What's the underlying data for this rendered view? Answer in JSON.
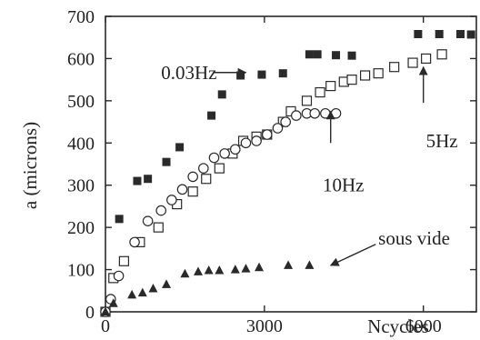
{
  "chart_data": {
    "type": "scatter",
    "title": "",
    "xlabel": "Ncycles",
    "ylabel": "a (microns)",
    "xlim": [
      0,
      7000
    ],
    "ylim": [
      0,
      700
    ],
    "x_ticks": [
      0,
      3000,
      6000
    ],
    "x_tick_labels": [
      "0",
      "3000",
      "6000"
    ],
    "y_ticks": [
      0,
      100,
      200,
      300,
      400,
      500,
      600,
      700
    ],
    "y_tick_labels": [
      "0",
      "100",
      "200",
      "300",
      "400",
      "500",
      "600",
      "700"
    ],
    "grid": false,
    "series": [
      {
        "name": "0.03Hz",
        "marker": "filled-square",
        "color": "#2a2a2a",
        "points": [
          [
            0,
            0
          ],
          [
            260,
            220
          ],
          [
            600,
            310
          ],
          [
            800,
            315
          ],
          [
            1150,
            355
          ],
          [
            1400,
            390
          ],
          [
            2000,
            465
          ],
          [
            2200,
            515
          ],
          [
            2550,
            560
          ],
          [
            2950,
            562
          ],
          [
            3350,
            565
          ],
          [
            3850,
            610
          ],
          [
            4000,
            610
          ],
          [
            4350,
            608
          ],
          [
            4650,
            607
          ],
          [
            5900,
            658
          ],
          [
            6300,
            658
          ],
          [
            6700,
            658
          ],
          [
            6900,
            657
          ]
        ]
      },
      {
        "name": "5Hz",
        "marker": "open-square",
        "color": "#2a2a2a",
        "points": [
          [
            0,
            0
          ],
          [
            150,
            80
          ],
          [
            350,
            120
          ],
          [
            650,
            165
          ],
          [
            1000,
            200
          ],
          [
            1350,
            255
          ],
          [
            1650,
            285
          ],
          [
            1900,
            315
          ],
          [
            2150,
            340
          ],
          [
            2400,
            375
          ],
          [
            2600,
            405
          ],
          [
            2850,
            415
          ],
          [
            3050,
            420
          ],
          [
            3350,
            450
          ],
          [
            3500,
            475
          ],
          [
            3800,
            500
          ],
          [
            4050,
            520
          ],
          [
            4250,
            535
          ],
          [
            4500,
            545
          ],
          [
            4650,
            550
          ],
          [
            4900,
            560
          ],
          [
            5150,
            565
          ],
          [
            5450,
            580
          ],
          [
            5800,
            590
          ],
          [
            6050,
            600
          ],
          [
            6350,
            610
          ]
        ]
      },
      {
        "name": "10Hz",
        "marker": "open-circle",
        "color": "#2a2a2a",
        "points": [
          [
            0,
            0
          ],
          [
            100,
            30
          ],
          [
            250,
            85
          ],
          [
            550,
            165
          ],
          [
            800,
            215
          ],
          [
            1050,
            240
          ],
          [
            1250,
            265
          ],
          [
            1450,
            290
          ],
          [
            1650,
            320
          ],
          [
            1850,
            340
          ],
          [
            2050,
            365
          ],
          [
            2250,
            375
          ],
          [
            2450,
            385
          ],
          [
            2650,
            400
          ],
          [
            2850,
            405
          ],
          [
            3050,
            420
          ],
          [
            3250,
            435
          ],
          [
            3400,
            450
          ],
          [
            3600,
            465
          ],
          [
            3800,
            470
          ],
          [
            3950,
            470
          ],
          [
            4150,
            470
          ],
          [
            4350,
            470
          ]
        ]
      },
      {
        "name": "sous vide",
        "marker": "filled-triangle",
        "color": "#2a2a2a",
        "points": [
          [
            0,
            0
          ],
          [
            150,
            20
          ],
          [
            500,
            40
          ],
          [
            700,
            45
          ],
          [
            900,
            55
          ],
          [
            1150,
            65
          ],
          [
            1500,
            90
          ],
          [
            1750,
            95
          ],
          [
            1950,
            98
          ],
          [
            2150,
            98
          ],
          [
            2450,
            100
          ],
          [
            2650,
            102
          ],
          [
            2900,
            105
          ],
          [
            3450,
            110
          ],
          [
            3850,
            110
          ]
        ]
      }
    ],
    "annotations": [
      {
        "text": "0.03Hz",
        "series": "0.03Hz",
        "label_at": [
          1050,
          567
        ],
        "arrow_from": [
          2050,
          567
        ],
        "arrow_to": [
          2650,
          567
        ]
      },
      {
        "text": "10Hz",
        "series": "10Hz",
        "label_at": [
          4100,
          300
        ],
        "arrow_from": [
          4250,
          400
        ],
        "arrow_to": [
          4250,
          475
        ]
      },
      {
        "text": "5Hz",
        "series": "5Hz",
        "label_at": [
          6050,
          405
        ],
        "arrow_from": [
          6000,
          495
        ],
        "arrow_to": [
          6000,
          580
        ]
      },
      {
        "text": "sous vide",
        "series": "sous vide",
        "label_at": [
          5150,
          175
        ],
        "arrow_from": [
          5100,
          160
        ],
        "arrow_to": [
          4250,
          110
        ]
      }
    ]
  }
}
